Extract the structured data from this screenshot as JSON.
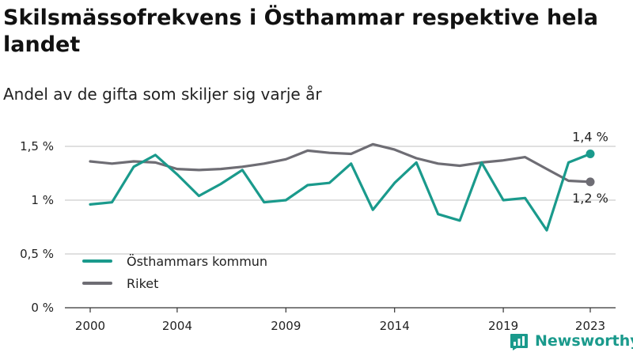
{
  "title": "Skilsmässofrekvens i Östhammar respektive hela landet",
  "subtitle": "Andel av de gifta som skiljer sig varje år",
  "brand": {
    "name": "Newsworthy",
    "icon": "bar-chart-logo-icon",
    "color": "#1a9a8c"
  },
  "chart_data": {
    "type": "line",
    "x": [
      2000,
      2001,
      2002,
      2003,
      2004,
      2005,
      2006,
      2007,
      2008,
      2009,
      2010,
      2011,
      2012,
      2013,
      2014,
      2015,
      2016,
      2017,
      2018,
      2019,
      2020,
      2021,
      2022,
      2023
    ],
    "x_ticks": [
      "2000",
      "2004",
      "2009",
      "2014",
      "2019",
      "2023"
    ],
    "y_ticks": [
      "0 %",
      "0,5 %",
      "1 %",
      "1,5 %"
    ],
    "ylim": [
      0,
      1.5
    ],
    "grid": true,
    "legend_position": "bottom-left",
    "series": [
      {
        "name": "Östhammars kommun",
        "color": "#1a9a8c",
        "values": [
          0.96,
          0.98,
          1.31,
          1.42,
          1.24,
          1.04,
          1.15,
          1.28,
          0.98,
          1.0,
          1.14,
          1.16,
          1.34,
          0.91,
          1.16,
          1.35,
          0.87,
          0.81,
          1.35,
          1.0,
          1.02,
          0.72,
          1.35,
          1.43
        ],
        "end_label": "1,4 %"
      },
      {
        "name": "Riket",
        "color": "#6e6d74",
        "values": [
          1.36,
          1.34,
          1.36,
          1.35,
          1.29,
          1.28,
          1.29,
          1.31,
          1.34,
          1.38,
          1.46,
          1.44,
          1.43,
          1.52,
          1.47,
          1.39,
          1.34,
          1.32,
          1.35,
          1.37,
          1.4,
          1.29,
          1.18,
          1.17
        ],
        "end_label": "1,2 %"
      }
    ]
  }
}
